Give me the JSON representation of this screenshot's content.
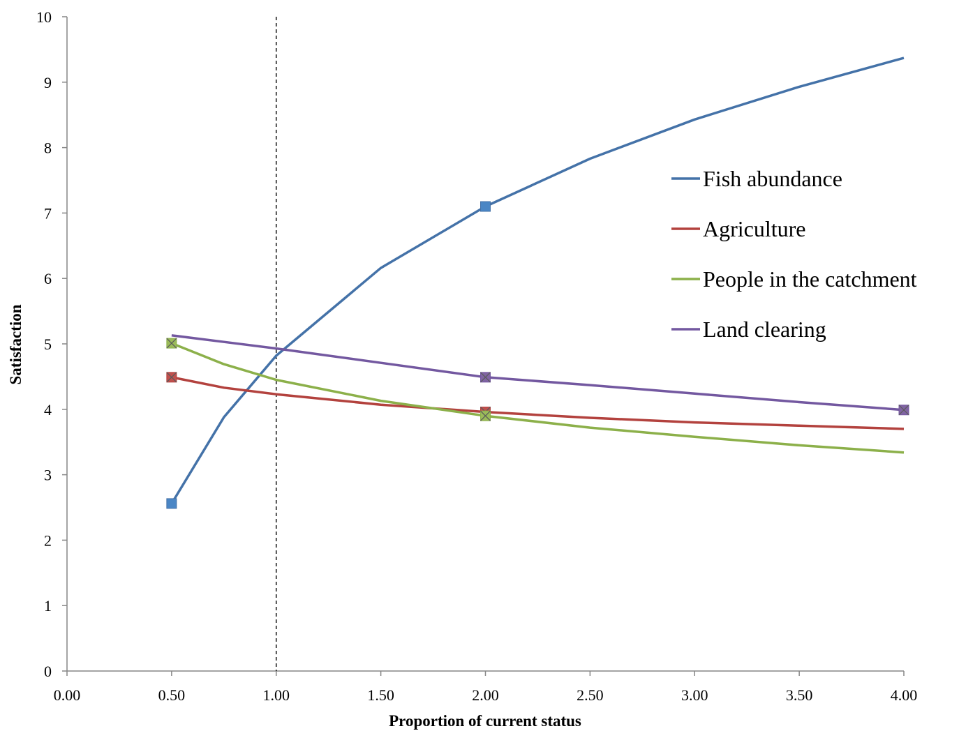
{
  "chart_data": {
    "type": "line",
    "title": "",
    "xlabel": "Proportion of current status",
    "ylabel": "Satisfaction",
    "xlim": [
      0,
      4
    ],
    "ylim": [
      0,
      10
    ],
    "x_ticks": [
      "0.00",
      "0.50",
      "1.00",
      "1.50",
      "2.00",
      "2.50",
      "3.00",
      "3.50",
      "4.00"
    ],
    "y_ticks": [
      "0",
      "1",
      "2",
      "3",
      "4",
      "5",
      "6",
      "7",
      "8",
      "9",
      "10"
    ],
    "grid": false,
    "legend_position": "right",
    "reference_line": {
      "x": 1.0,
      "style": "dashed"
    },
    "x": [
      0.5,
      0.75,
      1.0,
      1.5,
      2.0,
      2.5,
      3.0,
      3.5,
      4.0
    ],
    "series": [
      {
        "name": "Fish abundance",
        "color": "#4472A8",
        "marker_color": "#4A86C5",
        "values": [
          2.56,
          3.88,
          4.82,
          6.16,
          7.1,
          7.83,
          8.43,
          8.93,
          9.37
        ],
        "markers": [
          0.5,
          2.0
        ]
      },
      {
        "name": "Agriculture",
        "color": "#B3423E",
        "marker_color": "#C0504D",
        "values": [
          4.49,
          4.33,
          4.23,
          4.07,
          3.96,
          3.87,
          3.8,
          3.75,
          3.7
        ],
        "markers": [
          0.5,
          2.0
        ]
      },
      {
        "name": "People in the catchment",
        "color": "#8CB04A",
        "marker_color": "#9BBB59",
        "values": [
          5.01,
          4.69,
          4.45,
          4.13,
          3.9,
          3.72,
          3.58,
          3.45,
          3.34
        ],
        "markers": [
          0.5,
          2.0
        ]
      },
      {
        "name": "Land clearing",
        "color": "#7358A0",
        "marker_color": "#8064A2",
        "values": [
          5.13,
          5.03,
          4.93,
          4.71,
          4.49,
          4.37,
          4.24,
          4.11,
          3.99
        ],
        "markers": [
          2.0,
          4.0
        ]
      }
    ]
  }
}
